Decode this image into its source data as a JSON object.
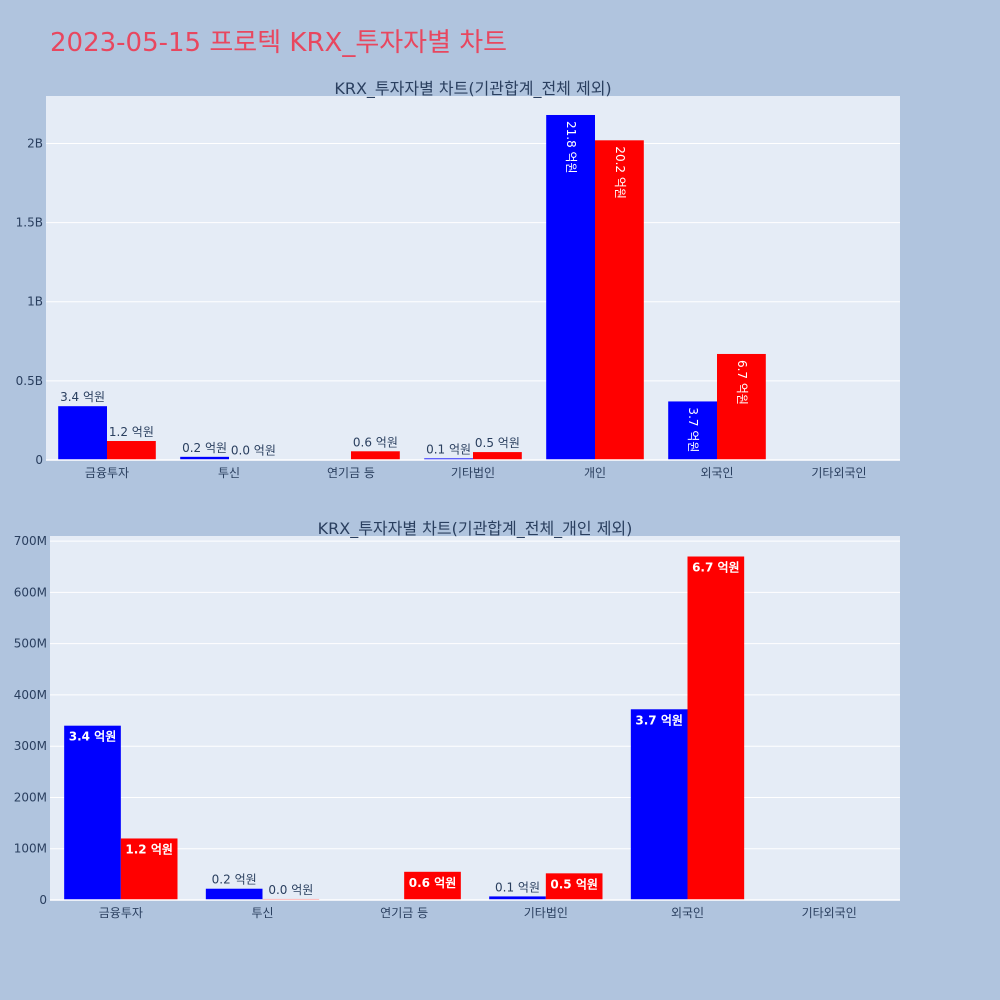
{
  "page": {
    "title": "2023-05-15 프로텍 KRX_투자자별 차트"
  },
  "chart_data": [
    {
      "type": "bar",
      "title": "KRX_투자자별 차트(기관합계_전체 제외)",
      "categories": [
        "금융투자",
        "투신",
        "연기금 등",
        "기타법인",
        "개인",
        "외국인",
        "기타외국인"
      ],
      "yticks": [
        {
          "v": 0,
          "t": "0"
        },
        {
          "v": 500000000,
          "t": "0.5B"
        },
        {
          "v": 1000000000,
          "t": "1B"
        },
        {
          "v": 1500000000,
          "t": "1.5B"
        },
        {
          "v": 2000000000,
          "t": "2B"
        }
      ],
      "ylim": [
        0,
        2300000000
      ],
      "series": [
        {
          "color": "#0000ff",
          "values": [
            340000000,
            20000000,
            0,
            10000000,
            2180000000,
            370000000,
            0
          ],
          "labels": [
            "3.4 억원",
            "0.2 억원",
            "",
            "0.1 억원",
            "21.8 억원",
            "3.7 억원",
            ""
          ]
        },
        {
          "color": "#ff0000",
          "values": [
            120000000,
            2000000,
            55000000,
            50000000,
            2020000000,
            670000000,
            0
          ],
          "labels": [
            "1.2 억원",
            "0.0 억원",
            "0.6 억원",
            "0.5 억원",
            "20.2 억원",
            "6.7 억원",
            ""
          ]
        }
      ]
    },
    {
      "type": "bar",
      "title": "KRX_투자자별 차트(기관합계_전체_개인 제외)",
      "categories": [
        "금융투자",
        "투신",
        "연기금 등",
        "기타법인",
        "외국인",
        "기타외국인"
      ],
      "yticks": [
        {
          "v": 0,
          "t": "0"
        },
        {
          "v": 100000000,
          "t": "100M"
        },
        {
          "v": 200000000,
          "t": "200M"
        },
        {
          "v": 300000000,
          "t": "300M"
        },
        {
          "v": 400000000,
          "t": "400M"
        },
        {
          "v": 500000000,
          "t": "500M"
        },
        {
          "v": 600000000,
          "t": "600M"
        },
        {
          "v": 700000000,
          "t": "700M"
        }
      ],
      "ylim": [
        0,
        710000000
      ],
      "series": [
        {
          "color": "#0000ff",
          "values": [
            340000000,
            22000000,
            0,
            7000000,
            372000000,
            0
          ],
          "labels": [
            "3.4 억원",
            "0.2 억원",
            "",
            "0.1 억원",
            "3.7 억원",
            ""
          ]
        },
        {
          "color": "#ff0000",
          "values": [
            120000000,
            2000000,
            55000000,
            52000000,
            670000000,
            0
          ],
          "labels": [
            "1.2 억원",
            "0.0 억원",
            "0.6 억원",
            "0.5 억원",
            "6.7 억원",
            ""
          ]
        }
      ]
    }
  ]
}
